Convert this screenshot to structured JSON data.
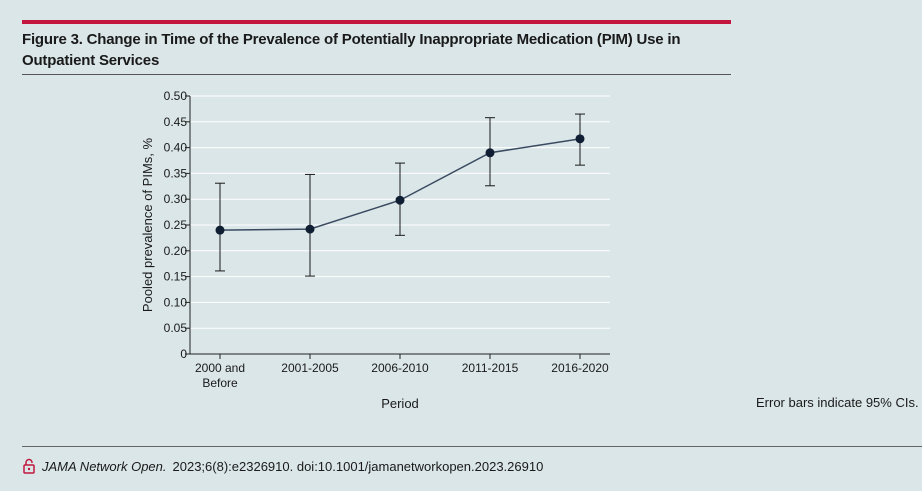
{
  "figure": {
    "title": "Figure 3. Change in Time of the Prevalence of Potentially Inappropriate Medication (PIM) Use in Outpatient Services",
    "note": "Error bars indicate 95% CIs.",
    "citation_journal": "JAMA Network Open.",
    "citation_rest": "2023;6(8):e2326910. doi:10.1001/jamanetworkopen.2023.26910",
    "accent_color": "#c2163f",
    "background_color": "#dbe6e8"
  },
  "chart_data": {
    "type": "line",
    "title": "",
    "xlabel": "Period",
    "ylabel": "Pooled prevalence of PIMs, %",
    "ylim": [
      0,
      0.5
    ],
    "yticks": [
      "0",
      "0.05",
      "0.10",
      "0.15",
      "0.20",
      "0.25",
      "0.30",
      "0.35",
      "0.40",
      "0.45",
      "0.50"
    ],
    "categories": [
      [
        "2000 and",
        "Before"
      ],
      [
        "2001-2005"
      ],
      [
        "2006-2010"
      ],
      [
        "2011-2015"
      ],
      [
        "2016-2020"
      ]
    ],
    "series": [
      {
        "name": "Pooled prevalence",
        "values": [
          0.24,
          0.242,
          0.298,
          0.39,
          0.417
        ],
        "ci_lower": [
          0.161,
          0.151,
          0.23,
          0.326,
          0.366
        ],
        "ci_upper": [
          0.331,
          0.348,
          0.37,
          0.458,
          0.465
        ]
      }
    ],
    "grid": true,
    "line_color": "#3a4a60",
    "marker_color": "#0f1e33",
    "grid_color": "#ffffff"
  }
}
